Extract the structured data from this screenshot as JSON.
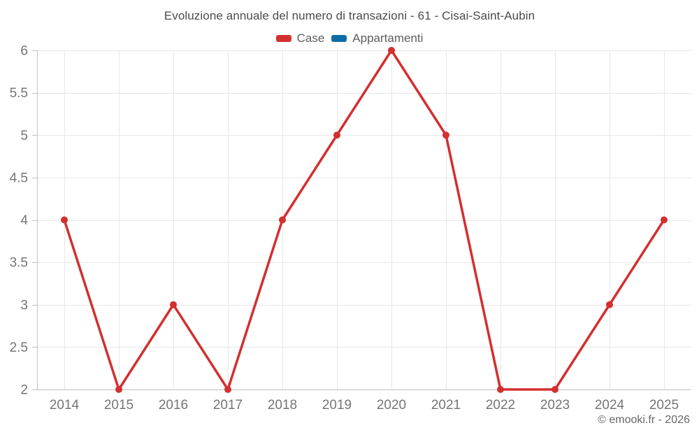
{
  "title": "Evoluzione annuale del numero di transazioni - 61 - Cisai-Saint-Aubin",
  "legend": {
    "items": [
      {
        "label": "Case",
        "color": "#d32f2f"
      },
      {
        "label": "Appartamenti",
        "color": "#0f6da6"
      }
    ]
  },
  "footer": {
    "copyright": "© emooki.fr - 2026"
  },
  "chart_data": {
    "type": "line",
    "title": "Evoluzione annuale del numero di transazioni - 61 - Cisai-Saint-Aubin",
    "categories": [
      "2014",
      "2015",
      "2016",
      "2017",
      "2018",
      "2019",
      "2020",
      "2021",
      "2022",
      "2023",
      "2024",
      "2025"
    ],
    "series": [
      {
        "name": "Case",
        "color": "#d32f2f",
        "values": [
          4,
          2,
          3,
          2,
          4,
          5,
          6,
          5,
          2,
          2,
          3,
          4
        ]
      },
      {
        "name": "Appartamenti",
        "color": "#0f6da6",
        "values": []
      }
    ],
    "xlabel": "",
    "ylabel": "",
    "ylim": [
      2,
      6
    ],
    "y_ticks": [
      2,
      2.5,
      3,
      3.5,
      4,
      4.5,
      5,
      5.5,
      6
    ],
    "grid": true,
    "legend_position": "top",
    "gridline_color": "#e7e7e7",
    "axis_color": "#c2c2c2",
    "tick_label_color": "#757575"
  }
}
